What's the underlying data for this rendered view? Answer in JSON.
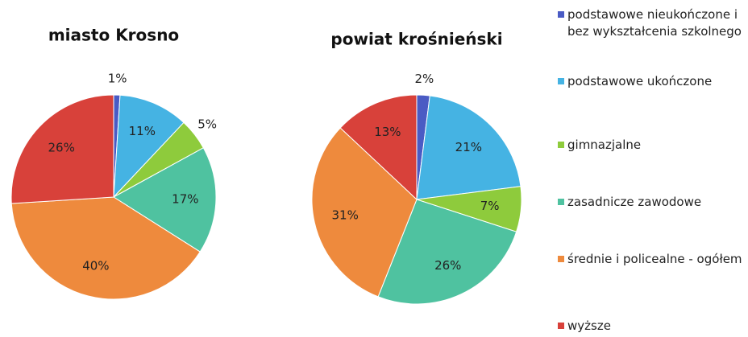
{
  "chart_data": [
    {
      "type": "pie",
      "title": "miasto Krosno",
      "values": [
        1,
        11,
        5,
        17,
        40,
        26
      ],
      "value_labels": [
        "1%",
        "11%",
        "5%",
        "17%",
        "40%",
        "26%"
      ]
    },
    {
      "type": "pie",
      "title": "powiat krośnieński",
      "values": [
        2,
        21,
        7,
        26,
        31,
        13
      ],
      "value_labels": [
        "2%",
        "21%",
        "7%",
        "26%",
        "31%",
        "13%"
      ]
    }
  ],
  "legend": {
    "labels": [
      "podstawowe nieukończone i bez wykształcenia szkolnego",
      "podstawowe ukończone",
      "gimnazjalne",
      "zasadnicze zawodowe",
      "średnie i policealne - ogółem",
      "wyższe"
    ],
    "colors": [
      "#4a5bc4",
      "#45b3e3",
      "#8ecb3c",
      "#4fc2a0",
      "#ee8a3d",
      "#d8413a"
    ]
  }
}
